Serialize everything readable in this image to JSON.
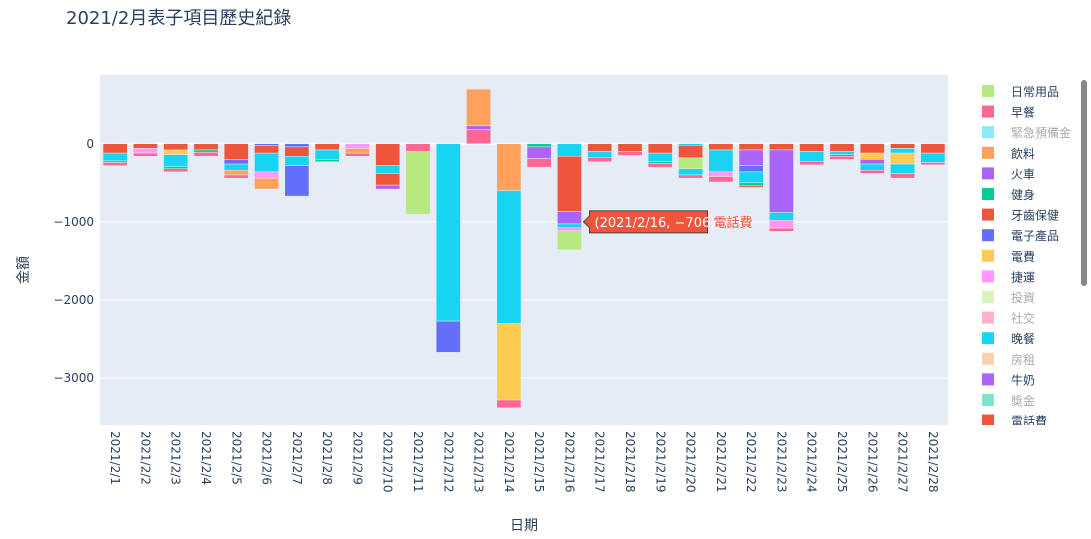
{
  "title": "2021/2月表子項目歷史紀錄",
  "colors": {
    "日常用品": "#b6e880",
    "早餐": "#ff6692",
    "緊急預備金": "#19d3f3",
    "飲料": "#ffa15a",
    "火車": "#ab63fa",
    "健身": "#00cc96",
    "牙齒保健": "#ef553b",
    "電子產品": "#636efa",
    "電費": "#fecb52",
    "捷運": "#ff97ff",
    "投資": "#b6e880",
    "社交": "#ff6692",
    "晚餐": "#19d3f3",
    "房租": "#ffa15a",
    "牛奶": "#ab63fa",
    "獎金": "#00cc96",
    "電話費": "#ef553b"
  },
  "legend": {
    "entries": [
      {
        "name": "日常用品",
        "visible": true
      },
      {
        "name": "早餐",
        "visible": true
      },
      {
        "name": "緊急預備金",
        "visible": false
      },
      {
        "name": "飲料",
        "visible": true
      },
      {
        "name": "火車",
        "visible": true
      },
      {
        "name": "健身",
        "visible": true
      },
      {
        "name": "牙齒保健",
        "visible": true
      },
      {
        "name": "電子產品",
        "visible": true
      },
      {
        "name": "電費",
        "visible": true
      },
      {
        "name": "捷運",
        "visible": true
      },
      {
        "name": "投資",
        "visible": false
      },
      {
        "name": "社交",
        "visible": false
      },
      {
        "name": "晚餐",
        "visible": true
      },
      {
        "name": "房租",
        "visible": false
      },
      {
        "name": "牛奶",
        "visible": true
      },
      {
        "name": "獎金",
        "visible": false
      },
      {
        "name": "電話費",
        "visible": true
      }
    ]
  },
  "tooltip": {
    "date": "2021/2/16",
    "value_text": "(2021/2/16, −706)",
    "series": "電話費"
  },
  "chart_data": {
    "type": "bar",
    "barmode": "relative",
    "title": "2021/2月表子項目歷史紀錄",
    "xlabel": "日期",
    "ylabel": "金額",
    "ylim": [
      -3600,
      880
    ],
    "yticks": [
      0,
      -1000,
      -2000,
      -3000
    ],
    "ytick_labels": [
      "0",
      "−1000",
      "−2000",
      "−3000"
    ],
    "grid": true,
    "legend_position": "right",
    "categories": [
      "2021/2/1",
      "2021/2/2",
      "2021/2/3",
      "2021/2/4",
      "2021/2/5",
      "2021/2/6",
      "2021/2/7",
      "2021/2/8",
      "2021/2/9",
      "2021/2/10",
      "2021/2/11",
      "2021/2/12",
      "2021/2/13",
      "2021/2/14",
      "2021/2/15",
      "2021/2/16",
      "2021/2/17",
      "2021/2/18",
      "2021/2/19",
      "2021/2/20",
      "2021/2/21",
      "2021/2/22",
      "2021/2/23",
      "2021/2/24",
      "2021/2/25",
      "2021/2/26",
      "2021/2/27",
      "2021/2/28"
    ],
    "stacks": [
      [
        [
          "牙齒保健",
          -120
        ],
        [
          "晚餐",
          -100
        ],
        [
          "健身",
          -20
        ],
        [
          "早餐",
          -40
        ]
      ],
      [
        [
          "牙齒保健",
          -60
        ],
        [
          "捷運",
          -60
        ],
        [
          "早餐",
          -40
        ]
      ],
      [
        [
          "牙齒保健",
          -80
        ],
        [
          "電費",
          -60
        ],
        [
          "晚餐",
          -150
        ],
        [
          "健身",
          -30
        ],
        [
          "早餐",
          -40
        ]
      ],
      [
        [
          "牙齒保健",
          -80
        ],
        [
          "健身",
          -30
        ],
        [
          "早餐",
          -50
        ]
      ],
      [
        [
          "牙齒保健",
          -200
        ],
        [
          "電子產品",
          -60
        ],
        [
          "晚餐",
          -80
        ],
        [
          "飲料",
          -60
        ],
        [
          "早餐",
          -40
        ]
      ],
      [
        [
          "電子產品",
          -20
        ],
        [
          "牙齒保健",
          -100
        ],
        [
          "晚餐",
          -240
        ],
        [
          "捷運",
          -80
        ],
        [
          "飲料",
          -140
        ]
      ],
      [
        [
          "電子產品",
          -40
        ],
        [
          "牙齒保健",
          -120
        ],
        [
          "晚餐",
          -120
        ],
        [
          "電子產品",
          -390
        ]
      ],
      [
        [
          "牙齒保健",
          -80
        ],
        [
          "晚餐",
          -120
        ],
        [
          "健身",
          -30
        ]
      ],
      [
        [
          "捷運",
          -60
        ],
        [
          "飲料",
          -60
        ],
        [
          "早餐",
          -40
        ]
      ],
      [
        [
          "牙齒保健",
          -280
        ],
        [
          "晚餐",
          -100
        ],
        [
          "牙齒保健",
          -150
        ],
        [
          "火車",
          -50
        ]
      ],
      [
        [
          "早餐",
          -100
        ],
        [
          "日常用品",
          -800
        ]
      ],
      [
        [
          "晚餐",
          -2270
        ],
        [
          "電子產品",
          -400
        ]
      ],
      [
        [
          "早餐",
          180
        ],
        [
          "火車",
          50
        ],
        [
          "飲料",
          470
        ]
      ],
      [
        [
          "飲料",
          -600
        ],
        [
          "晚餐",
          -1700
        ],
        [
          "電費",
          -980
        ],
        [
          "早餐",
          -100
        ]
      ],
      [
        [
          "健身",
          -40
        ],
        [
          "火車",
          -150
        ],
        [
          "早餐",
          -110
        ]
      ],
      [
        [
          "晚餐",
          -160
        ],
        [
          "電話費",
          -706
        ],
        [
          "火車",
          -160
        ],
        [
          "晚餐",
          -50
        ],
        [
          "捷運",
          -40
        ],
        [
          "日常用品",
          -240
        ]
      ],
      [
        [
          "牙齒保健",
          -100
        ],
        [
          "晚餐",
          -80
        ],
        [
          "早餐",
          -50
        ]
      ],
      [
        [
          "牙齒保健",
          -100
        ],
        [
          "早餐",
          -50
        ]
      ],
      [
        [
          "牙齒保健",
          -120
        ],
        [
          "晚餐",
          -110
        ],
        [
          "健身",
          -20
        ],
        [
          "早餐",
          -50
        ]
      ],
      [
        [
          "晚餐",
          -20
        ],
        [
          "牙齒保健",
          -160
        ],
        [
          "日常用品",
          -140
        ],
        [
          "晚餐",
          -80
        ],
        [
          "早餐",
          -40
        ]
      ],
      [
        [
          "牙齒保健",
          -80
        ],
        [
          "晚餐",
          -280
        ],
        [
          "捷運",
          -60
        ],
        [
          "早餐",
          -70
        ]
      ],
      [
        [
          "牙齒保健",
          -80
        ],
        [
          "火車",
          -200
        ],
        [
          "電子產品",
          -80
        ],
        [
          "晚餐",
          -140
        ],
        [
          "健身",
          -40
        ],
        [
          "牙齒保健",
          -20
        ]
      ],
      [
        [
          "牙齒保健",
          -80
        ],
        [
          "火車",
          -800
        ],
        [
          "晚餐",
          -100
        ],
        [
          "捷運",
          -100
        ],
        [
          "早餐",
          -40
        ]
      ],
      [
        [
          "牙齒保健",
          -100
        ],
        [
          "晚餐",
          -130
        ],
        [
          "早餐",
          -40
        ]
      ],
      [
        [
          "牙齒保健",
          -100
        ],
        [
          "晚餐",
          -40
        ],
        [
          "健身",
          -20
        ],
        [
          "早餐",
          -40
        ]
      ],
      [
        [
          "牙齒保健",
          -120
        ],
        [
          "電費",
          -80
        ],
        [
          "火車",
          -60
        ],
        [
          "晚餐",
          -80
        ],
        [
          "早餐",
          -40
        ]
      ],
      [
        [
          "牙齒保健",
          -60
        ],
        [
          "晚餐",
          -60
        ],
        [
          "電費",
          -140
        ],
        [
          "晚餐",
          -120
        ],
        [
          "早餐",
          -60
        ]
      ],
      [
        [
          "牙齒保健",
          -120
        ],
        [
          "晚餐",
          -120
        ],
        [
          "早餐",
          -30
        ]
      ]
    ]
  }
}
